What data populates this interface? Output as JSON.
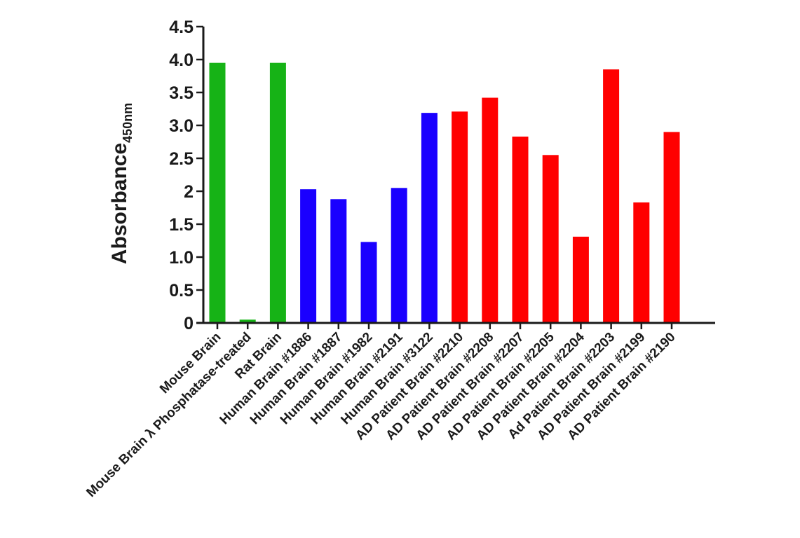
{
  "chart_data": {
    "type": "bar",
    "title": "",
    "xlabel": "",
    "ylabel": "Absorbance",
    "ylabel_subscript": "450nm",
    "ylim": [
      0,
      4.5
    ],
    "yticks": [
      "0",
      "0.5",
      "1.0",
      "1.5",
      "2",
      "2.5",
      "3.0",
      "3.5",
      "4.0",
      "4.5"
    ],
    "ytick_values": [
      0,
      0.5,
      1.0,
      1.5,
      2,
      2.5,
      3.0,
      3.5,
      4.0,
      4.5
    ],
    "grid": false,
    "legend": "none",
    "categories": [
      "Mouse Brain",
      "Mouse Brain λ Phosphatase-treated",
      "Rat Brain",
      "Human Brain #1886",
      "Human Brain #1887",
      "Human Brain #1982",
      "Human Brain #2191",
      "Human Brain #3122",
      "AD Patient Brain #2210",
      "AD Patient Brain #2208",
      "AD Patient Brain #2207",
      "AD Patient Brain #2205",
      "AD Patient Brain #2204",
      "Ad Patient Brain #2203",
      "AD Patient Brain #2199",
      "AD Patient Brain #2190"
    ],
    "values": [
      3.95,
      0.05,
      3.95,
      2.03,
      1.88,
      1.23,
      2.05,
      3.19,
      3.21,
      3.42,
      2.83,
      2.55,
      1.31,
      3.85,
      1.83,
      2.9
    ],
    "colors": [
      "#16b316",
      "#16b316",
      "#16b316",
      "#1a00ff",
      "#1a00ff",
      "#1a00ff",
      "#1a00ff",
      "#1a00ff",
      "#ff0000",
      "#ff0000",
      "#ff0000",
      "#ff0000",
      "#ff0000",
      "#ff0000",
      "#ff0000",
      "#ff0000"
    ]
  }
}
